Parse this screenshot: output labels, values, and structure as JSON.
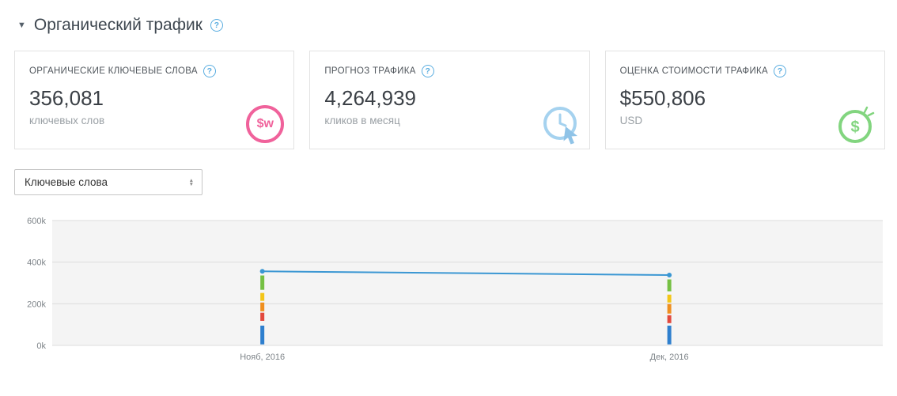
{
  "header": {
    "title": "Органический трафик",
    "collapse_icon": "▼"
  },
  "icons": {
    "help": "?",
    "sorter_up": "▲",
    "sorter_down": "▼"
  },
  "cards": [
    {
      "label": "ОРГАНИЧЕСКИЕ КЛЮЧЕВЫЕ СЛОВА",
      "value": "356,081",
      "subtitle": "ключевых слов",
      "icon": "organic-keywords-badge",
      "icon_color": "#f0629b",
      "icon_glyph": "$w"
    },
    {
      "label": "ПРОГНОЗ ТРАФИКА",
      "value": "4,264,939",
      "subtitle": "кликов в месяц",
      "icon": "traffic-forecast-badge",
      "icon_color": "#a5d2ef"
    },
    {
      "label": "ОЦЕНКА СТОИМОСТИ ТРАФИКА",
      "value": "$550,806",
      "subtitle": "USD",
      "icon": "traffic-cost-badge",
      "icon_color": "#82d57f",
      "icon_glyph": "$"
    }
  ],
  "filter": {
    "selected": "Ключевые слова"
  },
  "chart_data": {
    "type": "line",
    "title": "",
    "xlabel": "",
    "ylabel": "",
    "ylim": [
      0,
      600000
    ],
    "grid": true,
    "plot_bg": "#f4f4f4",
    "grid_color": "#dcdcdc",
    "line_color": "#3b97d3",
    "y_ticks": [
      {
        "label": "0k",
        "value": 0
      },
      {
        "label": "200k",
        "value": 200000
      },
      {
        "label": "400k",
        "value": 400000
      },
      {
        "label": "600k",
        "value": 600000
      }
    ],
    "series": [
      {
        "name": "Ключевые слова",
        "values": [
          356081,
          338000
        ]
      }
    ],
    "points": [
      {
        "label": "Нояб, 2016",
        "frac": 0.253,
        "value": 356081,
        "segments": [
          {
            "color": "#75c043",
            "from": 267000,
            "to": 336000
          },
          {
            "color": "#f3c518",
            "from": 214000,
            "to": 252000
          },
          {
            "color": "#ef8f1f",
            "from": 164000,
            "to": 206000
          },
          {
            "color": "#e2493d",
            "from": 118000,
            "to": 157000
          },
          {
            "color": "#2e7fce",
            "from": 5000,
            "to": 95000
          }
        ]
      },
      {
        "label": "Дек, 2016",
        "frac": 0.743,
        "value": 338000,
        "segments": [
          {
            "color": "#75c043",
            "from": 260000,
            "to": 317000
          },
          {
            "color": "#f3c518",
            "from": 206000,
            "to": 244000
          },
          {
            "color": "#ef8f1f",
            "from": 153000,
            "to": 199000
          },
          {
            "color": "#e2493d",
            "from": 107000,
            "to": 145000
          },
          {
            "color": "#2e7fce",
            "from": 5000,
            "to": 95000
          }
        ]
      }
    ]
  }
}
